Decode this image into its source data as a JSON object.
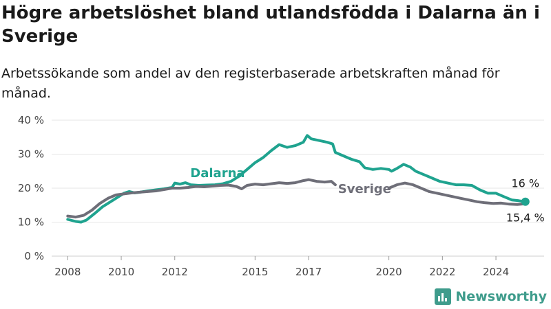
{
  "title": "Högre arbetslöshet bland utlandsfödda i Dalarna än i Sverige",
  "subtitle": "Arbetssökande som andel av den registerbaserade arbetskraften månad för månad.",
  "brand": {
    "name": "Newsworthy",
    "icon": "bar-chart-icon"
  },
  "chart_data": {
    "type": "line",
    "xlim": [
      2007.4,
      2025.8
    ],
    "ylim": [
      0,
      40
    ],
    "y_ticks": [
      0,
      10,
      20,
      30,
      40
    ],
    "y_tick_labels": [
      "0 %",
      "10 %",
      "20 %",
      "30 %",
      "40 %"
    ],
    "x_ticks": [
      2008,
      2010,
      2012,
      2015,
      2017,
      2020,
      2022,
      2024
    ],
    "x_tick_labels": [
      "2008",
      "2010",
      "2012",
      "2015",
      "2017",
      "2020",
      "2022",
      "2024"
    ],
    "grid": true,
    "series": [
      {
        "name": "Dalarna",
        "color": "#1fa38f",
        "end_label": "16 %",
        "points": [
          [
            2008.0,
            10.8
          ],
          [
            2008.3,
            10.2
          ],
          [
            2008.5,
            10.0
          ],
          [
            2008.7,
            10.6
          ],
          [
            2009.0,
            12.5
          ],
          [
            2009.3,
            14.5
          ],
          [
            2009.6,
            16.0
          ],
          [
            2009.9,
            17.5
          ],
          [
            2010.1,
            18.5
          ],
          [
            2010.3,
            19.0
          ],
          [
            2010.5,
            18.6
          ],
          [
            2010.7,
            18.8
          ],
          [
            2011.0,
            19.2
          ],
          [
            2011.3,
            19.5
          ],
          [
            2011.6,
            19.8
          ],
          [
            2011.9,
            20.2
          ],
          [
            2012.0,
            21.5
          ],
          [
            2012.2,
            21.2
          ],
          [
            2012.4,
            21.6
          ],
          [
            2012.6,
            21.0
          ],
          [
            2012.9,
            20.8
          ],
          [
            2013.2,
            20.9
          ],
          [
            2013.5,
            21.0
          ],
          [
            2013.8,
            21.3
          ],
          [
            2014.1,
            22.0
          ],
          [
            2014.4,
            23.5
          ],
          [
            2014.7,
            25.5
          ],
          [
            2015.0,
            27.5
          ],
          [
            2015.3,
            29.0
          ],
          [
            2015.6,
            31.0
          ],
          [
            2015.9,
            32.8
          ],
          [
            2016.2,
            32.0
          ],
          [
            2016.5,
            32.5
          ],
          [
            2016.8,
            33.5
          ],
          [
            2016.95,
            35.5
          ],
          [
            2017.1,
            34.5
          ],
          [
            2017.4,
            34.0
          ],
          [
            2017.7,
            33.5
          ],
          [
            2017.9,
            33.0
          ],
          [
            2018.0,
            30.5
          ],
          [
            2018.3,
            29.5
          ],
          [
            2018.6,
            28.5
          ],
          [
            2018.9,
            27.8
          ],
          [
            2019.1,
            26.0
          ],
          [
            2019.4,
            25.5
          ],
          [
            2019.7,
            25.8
          ],
          [
            2020.0,
            25.5
          ],
          [
            2020.1,
            25.0
          ],
          [
            2020.3,
            25.8
          ],
          [
            2020.55,
            27.0
          ],
          [
            2020.8,
            26.2
          ],
          [
            2021.0,
            25.0
          ],
          [
            2021.3,
            24.0
          ],
          [
            2021.6,
            23.0
          ],
          [
            2021.9,
            22.0
          ],
          [
            2022.2,
            21.5
          ],
          [
            2022.5,
            21.0
          ],
          [
            2022.8,
            21.0
          ],
          [
            2023.1,
            20.8
          ],
          [
            2023.4,
            19.5
          ],
          [
            2023.7,
            18.5
          ],
          [
            2024.0,
            18.5
          ],
          [
            2024.3,
            17.5
          ],
          [
            2024.6,
            16.5
          ],
          [
            2024.85,
            16.3
          ],
          [
            2025.1,
            16.0
          ]
        ]
      },
      {
        "name": "Sverige",
        "color": "#6e6e78",
        "end_label": "15,4 %",
        "points": [
          [
            2008.0,
            11.8
          ],
          [
            2008.3,
            11.5
          ],
          [
            2008.6,
            12.0
          ],
          [
            2008.9,
            13.5
          ],
          [
            2009.2,
            15.5
          ],
          [
            2009.5,
            17.0
          ],
          [
            2009.8,
            18.0
          ],
          [
            2010.1,
            18.3
          ],
          [
            2010.4,
            18.6
          ],
          [
            2010.7,
            18.8
          ],
          [
            2011.0,
            19.0
          ],
          [
            2011.3,
            19.2
          ],
          [
            2011.6,
            19.6
          ],
          [
            2011.9,
            20.0
          ],
          [
            2012.2,
            20.0
          ],
          [
            2012.5,
            20.2
          ],
          [
            2012.8,
            20.5
          ],
          [
            2013.1,
            20.4
          ],
          [
            2013.4,
            20.6
          ],
          [
            2013.7,
            20.8
          ],
          [
            2014.0,
            20.9
          ],
          [
            2014.3,
            20.5
          ],
          [
            2014.5,
            19.8
          ],
          [
            2014.7,
            20.8
          ],
          [
            2015.0,
            21.2
          ],
          [
            2015.3,
            21.0
          ],
          [
            2015.6,
            21.3
          ],
          [
            2015.9,
            21.6
          ],
          [
            2016.2,
            21.4
          ],
          [
            2016.5,
            21.6
          ],
          [
            2016.8,
            22.2
          ],
          [
            2017.0,
            22.5
          ],
          [
            2017.3,
            22.0
          ],
          [
            2017.6,
            21.8
          ],
          [
            2017.85,
            22.0
          ],
          [
            2018.0,
            21.0
          ]
        ]
      },
      {
        "name": "",
        "color": "#6e6e78",
        "points": [
          [
            2020.0,
            20.0
          ],
          [
            2020.3,
            21.0
          ],
          [
            2020.6,
            21.5
          ],
          [
            2020.9,
            21.0
          ],
          [
            2021.2,
            20.0
          ],
          [
            2021.5,
            19.0
          ],
          [
            2021.8,
            18.5
          ],
          [
            2022.1,
            18.0
          ],
          [
            2022.4,
            17.5
          ],
          [
            2022.7,
            17.0
          ],
          [
            2023.0,
            16.5
          ],
          [
            2023.3,
            16.0
          ],
          [
            2023.6,
            15.7
          ],
          [
            2023.9,
            15.5
          ],
          [
            2024.2,
            15.6
          ],
          [
            2024.5,
            15.3
          ],
          [
            2024.8,
            15.2
          ],
          [
            2025.1,
            15.4
          ]
        ]
      }
    ]
  }
}
